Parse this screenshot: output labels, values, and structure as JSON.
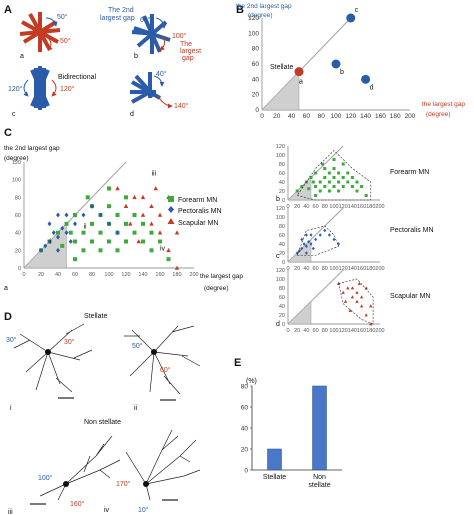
{
  "panels": {
    "A": {
      "letter": "A",
      "roses": [
        {
          "sub": "a",
          "labels": [
            "50°",
            "50°"
          ]
        },
        {
          "sub": "b",
          "labels": [
            "60°",
            "100°"
          ],
          "notes": [
            "The 2nd",
            "largest gap",
            "The",
            "largest",
            "gap"
          ]
        },
        {
          "sub": "c",
          "labels": [
            "120°",
            "120°"
          ],
          "notes": [
            "Bidirectional"
          ]
        },
        {
          "sub": "d",
          "labels": [
            "40°",
            "140°"
          ]
        }
      ]
    },
    "B": {
      "letter": "B",
      "ylabel": [
        "the 2nd largest gap",
        "(degree)"
      ],
      "xlabel": [
        "the largest gap",
        "(degree)"
      ],
      "stellate_label": "Stellate"
    },
    "C": {
      "letter": "C",
      "ylabel": [
        "the 2nd largest gap",
        "(degree)"
      ],
      "xlabel": [
        "the largest gap",
        "(degree)"
      ],
      "legend": [
        "Forearm MN",
        "Pectoralis MN",
        "Scapular MN"
      ],
      "sub": "a",
      "annotations": [
        "i",
        "ii",
        "iii",
        "iv"
      ],
      "small_plots": [
        {
          "sub": "b",
          "label": "Forearm MN"
        },
        {
          "sub": "c",
          "label": "Pectoralis MN"
        },
        {
          "sub": "d",
          "label": "Scapular MN"
        }
      ]
    },
    "D": {
      "letter": "D",
      "stellate_title": "Stellate",
      "non_stellate_title": "Non stellate",
      "neurons": [
        {
          "sub": "i",
          "labels": [
            "30°",
            "30°"
          ]
        },
        {
          "sub": "ii",
          "labels": [
            "50°",
            "60°"
          ]
        },
        {
          "sub": "iii",
          "labels": [
            "100°",
            "160°"
          ]
        },
        {
          "sub": "iv",
          "labels": [
            "170°",
            "10°"
          ]
        }
      ]
    },
    "E": {
      "letter": "E",
      "unit": "(%)"
    }
  },
  "colors": {
    "blue": "#2a5caa",
    "red": "#c23b22",
    "green": "#3caa3c",
    "gray": "#999999"
  },
  "chart_data": [
    {
      "type": "scatter",
      "panel": "B",
      "xlabel": "the largest gap (degree)",
      "ylabel": "the 2nd largest gap (degree)",
      "xlim": [
        0,
        200
      ],
      "ylim": [
        0,
        120
      ],
      "x_ticks": [
        0,
        20,
        40,
        60,
        80,
        100,
        120,
        140,
        160,
        180,
        200
      ],
      "y_ticks": [
        0,
        20,
        40,
        60,
        80,
        100,
        120
      ],
      "points": [
        {
          "label": "a",
          "x": 50,
          "y": 50,
          "color": "red"
        },
        {
          "label": "b",
          "x": 100,
          "y": 60,
          "color": "blue"
        },
        {
          "label": "c",
          "x": 120,
          "y": 120,
          "color": "blue"
        },
        {
          "label": "d",
          "x": 140,
          "y": 40,
          "color": "blue"
        }
      ]
    },
    {
      "type": "scatter",
      "panel": "C-a",
      "xlabel": "the largest gap (degree)",
      "ylabel": "the 2nd largest gap (degree)",
      "xlim": [
        0,
        200
      ],
      "ylim": [
        0,
        120
      ],
      "x_ticks": [
        0,
        20,
        40,
        60,
        80,
        100,
        120,
        140,
        160,
        180,
        200
      ],
      "y_ticks": [
        0,
        20,
        40,
        60,
        80,
        100,
        120
      ],
      "series": [
        {
          "name": "Forearm MN",
          "marker": "square",
          "color": "green",
          "points": [
            [
              20,
              20
            ],
            [
              30,
              30
            ],
            [
              40,
              40
            ],
            [
              45,
              25
            ],
            [
              50,
              50
            ],
            [
              55,
              40
            ],
            [
              60,
              30
            ],
            [
              60,
              60
            ],
            [
              70,
              40
            ],
            [
              75,
              80
            ],
            [
              80,
              30
            ],
            [
              80,
              50
            ],
            [
              80,
              70
            ],
            [
              90,
              20
            ],
            [
              90,
              40
            ],
            [
              90,
              60
            ],
            [
              100,
              30
            ],
            [
              100,
              50
            ],
            [
              100,
              70
            ],
            [
              100,
              90
            ],
            [
              110,
              20
            ],
            [
              110,
              40
            ],
            [
              110,
              60
            ],
            [
              120,
              30
            ],
            [
              120,
              50
            ],
            [
              120,
              80
            ],
            [
              130,
              40
            ],
            [
              130,
              60
            ],
            [
              140,
              30
            ],
            [
              140,
              50
            ],
            [
              150,
              20
            ],
            [
              150,
              40
            ],
            [
              160,
              30
            ],
            [
              170,
              10
            ],
            [
              60,
              10
            ],
            [
              70,
              20
            ]
          ]
        },
        {
          "name": "Pectoralis MN",
          "marker": "diamond",
          "color": "blue",
          "points": [
            [
              20,
              20
            ],
            [
              25,
              25
            ],
            [
              30,
              30
            ],
            [
              35,
              40
            ],
            [
              40,
              20
            ],
            [
              40,
              35
            ],
            [
              45,
              45
            ],
            [
              50,
              40
            ],
            [
              50,
              60
            ],
            [
              55,
              30
            ],
            [
              60,
              50
            ],
            [
              70,
              60
            ],
            [
              80,
              70
            ],
            [
              90,
              60
            ],
            [
              100,
              50
            ],
            [
              110,
              40
            ],
            [
              30,
              50
            ],
            [
              40,
              60
            ]
          ]
        },
        {
          "name": "Scapular MN",
          "marker": "triangle",
          "color": "red",
          "points": [
            [
              120,
              70
            ],
            [
              130,
              80
            ],
            [
              140,
              60
            ],
            [
              140,
              80
            ],
            [
              150,
              50
            ],
            [
              150,
              70
            ],
            [
              160,
              40
            ],
            [
              160,
              60
            ],
            [
              170,
              80
            ],
            [
              170,
              20
            ],
            [
              180,
              40
            ],
            [
              180,
              0
            ],
            [
              125,
              50
            ],
            [
              135,
              30
            ],
            [
              110,
              90
            ],
            [
              155,
              90
            ]
          ]
        }
      ]
    },
    {
      "type": "bar",
      "panel": "E",
      "ylabel": "(%)",
      "categories": [
        "Stellate",
        "Non stellate"
      ],
      "category_lines": [
        [
          "Stellate"
        ],
        [
          "Non",
          "stellate"
        ]
      ],
      "values": [
        20,
        80
      ],
      "ylim": [
        0,
        80
      ],
      "y_ticks": [
        0,
        20,
        40,
        60,
        80
      ],
      "color": "blue"
    }
  ]
}
